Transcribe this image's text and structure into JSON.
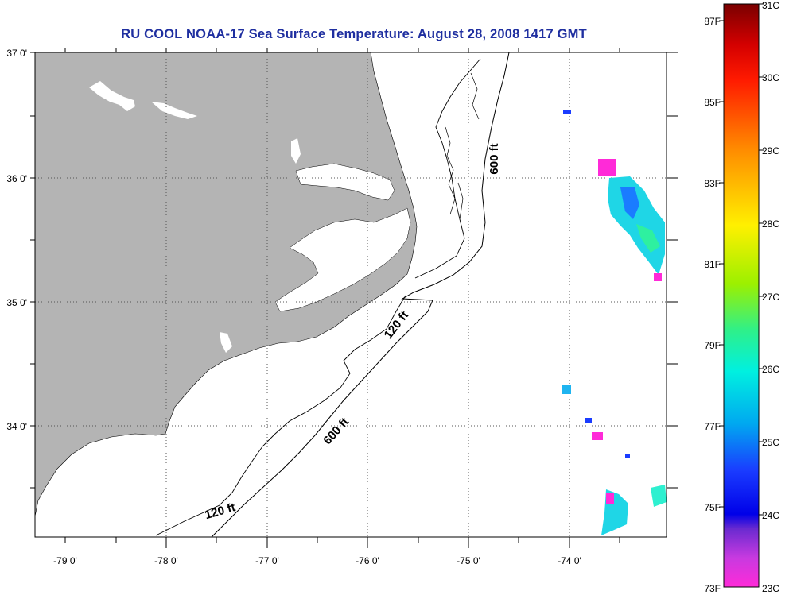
{
  "title": "RU COOL  NOAA-17  Sea Surface Temperature:  August 28, 2008 1417 GMT",
  "map": {
    "lat_labels": [
      "37 0'",
      "36 0'",
      "35 0'",
      "34 0'"
    ],
    "lon_labels": [
      "-79 0'",
      "-78 0'",
      "-77 0'",
      "-76 0'",
      "-75 0'",
      "-74 0'"
    ],
    "contour_labels": [
      "600 ft",
      "120 ft",
      "600 ft",
      "120 ft"
    ],
    "colors": {
      "land": "#b4b4b4",
      "water": "#ffffff",
      "contour": "#000000",
      "grid": "#000000"
    }
  },
  "colorbar": {
    "f_labels": [
      "87F",
      "85F",
      "83F",
      "81F",
      "79F",
      "77F",
      "75F",
      "73F"
    ],
    "c_labels": [
      "31C",
      "30C",
      "29C",
      "28C",
      "27C",
      "26C",
      "25C",
      "24C",
      "23C"
    ]
  }
}
